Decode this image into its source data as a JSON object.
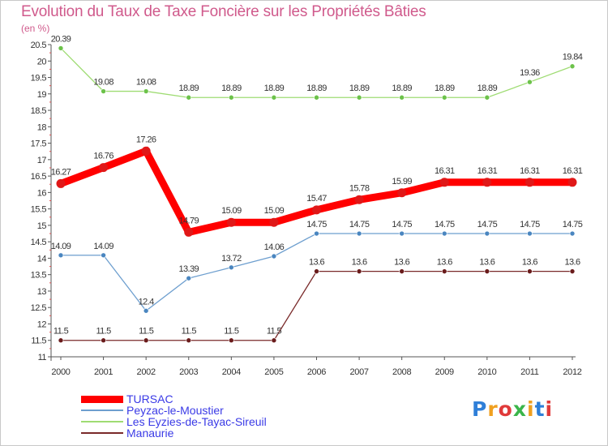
{
  "header": {
    "title": "Evolution du Taux de Taxe Foncière sur les Propriétés Bâties",
    "unit": "(en %)"
  },
  "logo": {
    "text": "Proxiti",
    "colors": [
      "#2f7fd8",
      "#f0a020",
      "#e03a3a",
      "#3ab54a",
      "#f0a020",
      "#2f7fd8",
      "#e03a3a"
    ]
  },
  "chart_data": {
    "type": "line",
    "title": "Evolution du Taux de Taxe Foncière sur les Propriétés Bâties",
    "ylabel": "(en %)",
    "xlabel": "",
    "x": [
      "2000",
      "2001",
      "2002",
      "2003",
      "2004",
      "2005",
      "2006",
      "2007",
      "2008",
      "2009",
      "2010",
      "2011",
      "2012"
    ],
    "ylim": [
      11,
      20.5
    ],
    "yticks": [
      "11",
      "11.5",
      "12",
      "12.5",
      "13",
      "13.5",
      "14",
      "14.5",
      "15",
      "15.5",
      "16",
      "16.5",
      "17",
      "17.5",
      "18",
      "18.5",
      "19",
      "19.5",
      "20",
      "20.5"
    ],
    "grid": false,
    "legend_position": "bottom-left",
    "series": [
      {
        "name": "TURSAC",
        "color": "#ff0000",
        "marker": "#e01818",
        "values": [
          16.27,
          16.76,
          17.26,
          14.79,
          15.09,
          15.09,
          15.47,
          15.78,
          15.99,
          16.31,
          16.31,
          16.31,
          16.31
        ],
        "labels": [
          "16.27",
          "16.76",
          "17.26",
          "14.79",
          "15.09",
          "15.09",
          "15.47",
          "15.78",
          "15.99",
          "16.31",
          "16.31",
          "16.31",
          "16.31"
        ]
      },
      {
        "name": "Peyzac-le-Moustier",
        "color": "#6e9fcf",
        "marker": "#4a86c0",
        "values": [
          14.09,
          14.09,
          12.4,
          13.39,
          13.72,
          14.06,
          14.75,
          14.75,
          14.75,
          14.75,
          14.75,
          14.75,
          14.75
        ],
        "labels": [
          "14.09",
          "14.09",
          "12.4",
          "13.39",
          "13.72",
          "14.06",
          "14.75",
          "14.75",
          "14.75",
          "14.75",
          "14.75",
          "14.75",
          "14.75"
        ]
      },
      {
        "name": "Les Eyzies-de-Tayac-Sireuil",
        "color": "#9fdc73",
        "marker": "#6cc24a",
        "values": [
          20.39,
          19.08,
          19.08,
          18.89,
          18.89,
          18.89,
          18.89,
          18.89,
          18.89,
          18.89,
          18.89,
          19.36,
          19.84
        ],
        "labels": [
          "20.39",
          "19.08",
          "19.08",
          "18.89",
          "18.89",
          "18.89",
          "18.89",
          "18.89",
          "18.89",
          "18.89",
          "18.89",
          "19.36",
          "19.84"
        ]
      },
      {
        "name": "Manaurie",
        "color": "#7a2a2a",
        "marker": "#6a1c1c",
        "values": [
          11.5,
          11.5,
          11.5,
          11.5,
          11.5,
          11.5,
          13.6,
          13.6,
          13.6,
          13.6,
          13.6,
          13.6,
          13.6
        ],
        "labels": [
          "11.5",
          "11.5",
          "11.5",
          "11.5",
          "11.5",
          "11.5",
          "13.6",
          "13.6",
          "13.6",
          "13.6",
          "13.6",
          "13.6",
          "13.6"
        ]
      }
    ]
  }
}
